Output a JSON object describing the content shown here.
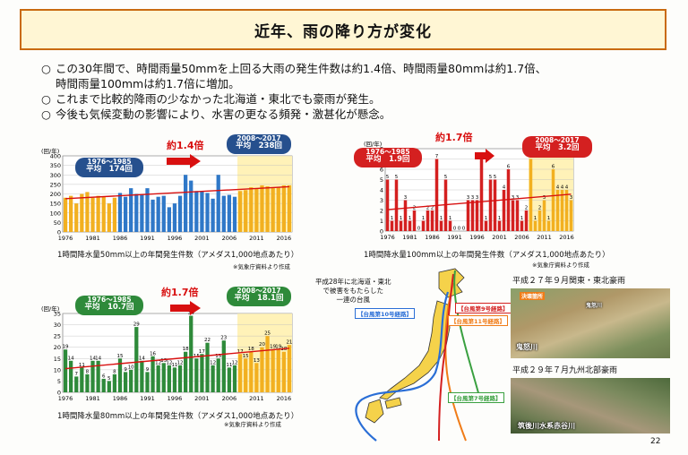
{
  "title": "近年、雨の降り方が変化",
  "bullets": [
    {
      "marker": "○",
      "text": "この30年間で、時間雨量50mmを上回る大雨の発生件数は約1.4倍、時間雨量80mmは約1.7倍、"
    },
    {
      "marker": "",
      "text": "時間雨量100mmは約1.7倍に増加。"
    },
    {
      "marker": "○",
      "text": "これまで比較的降雨の少なかった北海道・東北でも豪雨が発生。"
    },
    {
      "marker": "○",
      "text": "今後も気候変動の影響により、水害の更なる頻発・激甚化が懸念。"
    }
  ],
  "page_number": "22",
  "charts": {
    "c50": {
      "caption": "1時間降水量50mm以上の年間発生件数（アメダス1,000地点あたり）",
      "source": "※気象庁資料より作成",
      "ratio": "約1.4倍",
      "early_period": "1976～1985",
      "early_avg": "平均　174回",
      "late_period": "2008～2017",
      "late_avg": "平均　238回"
    },
    "c100": {
      "caption": "1時間降水量100mm以上の年間発生件数（アメダス1,000地点あたり）",
      "source": "※気象庁資料より作成",
      "ratio": "約1.7倍",
      "early_period": "1976～1985",
      "early_avg": "平均　1.9回",
      "late_period": "2008～2017",
      "late_avg": "平均　3.2回"
    },
    "c80": {
      "caption": "1時間降水量80mm以上の年間発生件数（アメダス1,000地点あたり）",
      "source": "※気象庁資料より作成",
      "ratio": "約1.7倍",
      "early_period": "1976～1985",
      "early_avg": "平均　10.7回",
      "late_period": "2008～2017",
      "late_avg": "平均　18.1回"
    }
  },
  "chart_data": [
    {
      "type": "bar",
      "id": "c50",
      "unit": "(回/年)",
      "years": [
        1976,
        1977,
        1978,
        1979,
        1980,
        1981,
        1982,
        1983,
        1984,
        1985,
        1986,
        1987,
        1988,
        1989,
        1990,
        1991,
        1992,
        1993,
        1994,
        1995,
        1996,
        1997,
        1998,
        1999,
        2000,
        2001,
        2002,
        2003,
        2004,
        2005,
        2006,
        2007,
        2008,
        2009,
        2010,
        2011,
        2012,
        2013,
        2014,
        2015,
        2016,
        2017
      ],
      "values": [
        180,
        190,
        150,
        200,
        210,
        180,
        190,
        185,
        150,
        180,
        205,
        185,
        230,
        200,
        195,
        230,
        170,
        185,
        190,
        130,
        150,
        190,
        300,
        270,
        215,
        215,
        205,
        175,
        300,
        190,
        195,
        185,
        215,
        220,
        235,
        230,
        245,
        240,
        235,
        235,
        245,
        245
      ],
      "data_labels": [
        "",
        "",
        "",
        "",
        "",
        "",
        "",
        "",
        "",
        "",
        "",
        "",
        "",
        "",
        "",
        "",
        "",
        "",
        "",
        "",
        "",
        "",
        "",
        "",
        "",
        "",
        "",
        "",
        "",
        "",
        "",
        "",
        "",
        "",
        "",
        "",
        "",
        "",
        "",
        "",
        "",
        ""
      ],
      "ylim": [
        0,
        400
      ],
      "yticks": [
        0,
        50,
        100,
        150,
        200,
        250,
        300,
        350,
        400
      ],
      "xticks": [
        "1976",
        "1981",
        "1986",
        "1991",
        "1996",
        "2001",
        "2006",
        "2011",
        "2016"
      ],
      "periods": {
        "early": [
          1976,
          1985
        ],
        "late": [
          2008,
          2017
        ]
      },
      "colors": {
        "early": "#f2b020",
        "middle": "#2f78c8",
        "late": "#f2b020"
      }
    },
    {
      "type": "bar",
      "id": "c100",
      "unit": "(回/年)",
      "years": [
        1976,
        1977,
        1978,
        1979,
        1980,
        1981,
        1982,
        1983,
        1984,
        1985,
        1986,
        1987,
        1988,
        1989,
        1990,
        1991,
        1992,
        1993,
        1994,
        1995,
        1996,
        1997,
        1998,
        1999,
        2000,
        2001,
        2002,
        2003,
        2004,
        2005,
        2006,
        2007,
        2008,
        2009,
        2010,
        2011,
        2012,
        2013,
        2014,
        2015,
        2016,
        2017
      ],
      "values": [
        5,
        1,
        5,
        1,
        3,
        1,
        2,
        0,
        1,
        2,
        2,
        7,
        1,
        5,
        1,
        0,
        0,
        0,
        3,
        3,
        3,
        7,
        1,
        5,
        5,
        1,
        4,
        6,
        3,
        3,
        1,
        2,
        7,
        1,
        2,
        3,
        1,
        6,
        4,
        4,
        4,
        3
      ],
      "data_labels": [
        "5",
        "1",
        "5",
        "1",
        "3",
        "1",
        "2",
        "0",
        "1",
        "2",
        "2",
        "7",
        "1",
        "5",
        "1",
        "0",
        "0",
        "0",
        "3",
        "3",
        "3",
        "7",
        "1",
        "5",
        "5",
        "1",
        "4",
        "6",
        "3",
        "3",
        "1",
        "2",
        "7",
        "1",
        "2",
        "3",
        "1",
        "6",
        "4",
        "4",
        "4",
        "3"
      ],
      "ylim": [
        0,
        8
      ],
      "yticks": [
        0,
        1,
        2,
        3,
        4,
        5,
        6,
        7,
        8
      ],
      "xticks": [
        "1976",
        "1981",
        "1986",
        "1991",
        "1996",
        "2001",
        "2006",
        "2011",
        "2016"
      ],
      "periods": {
        "early": [
          1976,
          1985
        ],
        "late": [
          2008,
          2017
        ]
      },
      "colors": {
        "early": "#d42020",
        "middle": "#d42020",
        "late": "#f2b020"
      }
    },
    {
      "type": "bar",
      "id": "c80",
      "unit": "(回/年)",
      "years": [
        1976,
        1977,
        1978,
        1979,
        1980,
        1981,
        1982,
        1983,
        1984,
        1985,
        1986,
        1987,
        1988,
        1989,
        1990,
        1991,
        1992,
        1993,
        1994,
        1995,
        1996,
        1997,
        1998,
        1999,
        2000,
        2001,
        2002,
        2003,
        2004,
        2005,
        2006,
        2007,
        2008,
        2009,
        2010,
        2011,
        2012,
        2013,
        2014,
        2015,
        2016,
        2017
      ],
      "values": [
        19,
        14,
        7,
        11,
        8,
        14,
        14,
        6,
        5,
        8,
        15,
        9,
        10,
        29,
        14,
        9,
        16,
        12,
        13,
        12,
        11,
        12,
        18,
        34,
        15,
        17,
        22,
        12,
        15,
        23,
        11,
        12,
        17,
        15,
        18,
        13,
        20,
        25,
        19,
        19,
        18,
        21
      ],
      "data_labels": [
        "19",
        "14",
        "7",
        "11",
        "8",
        "14",
        "14",
        "6",
        "5",
        "8",
        "15",
        "9",
        "10",
        "29",
        "14",
        "9",
        "16",
        "12",
        "13",
        "12",
        "11",
        "12",
        "18",
        "34",
        "15",
        "17",
        "22",
        "12",
        "15",
        "23",
        "11",
        "12",
        "17",
        "15",
        "18",
        "13",
        "20",
        "25",
        "19",
        "19",
        "18",
        "21"
      ],
      "ylim": [
        0,
        35
      ],
      "yticks": [
        0,
        5,
        10,
        15,
        20,
        25,
        30,
        35
      ],
      "xticks": [
        "1976",
        "1981",
        "1986",
        "1991",
        "1996",
        "2001",
        "2006",
        "2011",
        "2016"
      ],
      "periods": {
        "early": [
          1976,
          1985
        ],
        "late": [
          2008,
          2017
        ]
      },
      "colors": {
        "early": "#2e8a3a",
        "middle": "#2e8a3a",
        "late": "#f2b020"
      }
    }
  ],
  "map": {
    "annotation_line1": "平成28年に北海道・東北",
    "annotation_line2": "で被害をもたらした",
    "annotation_line3": "一連の台風",
    "route_10": "【台風第10号経路】",
    "route_11": "【台風第11号経路】",
    "route_9": "【台風第9号経路】",
    "route_7": "【台風第7号経路】",
    "colors": {
      "route_10": "#2a6ed6",
      "route_11": "#f07c18",
      "route_9": "#d42020",
      "route_7": "#3aa040",
      "land": "#f5d24a"
    }
  },
  "photos": {
    "p1_title": "平成２７年９月関東・東北豪雨",
    "p1_label": "鬼怒川",
    "p1_tag1": "決壊箇所",
    "p1_tag2": "鬼怒川",
    "p2_title": "平成２９年７月九州北部豪雨",
    "p2_label": "筑後川水系赤谷川"
  }
}
